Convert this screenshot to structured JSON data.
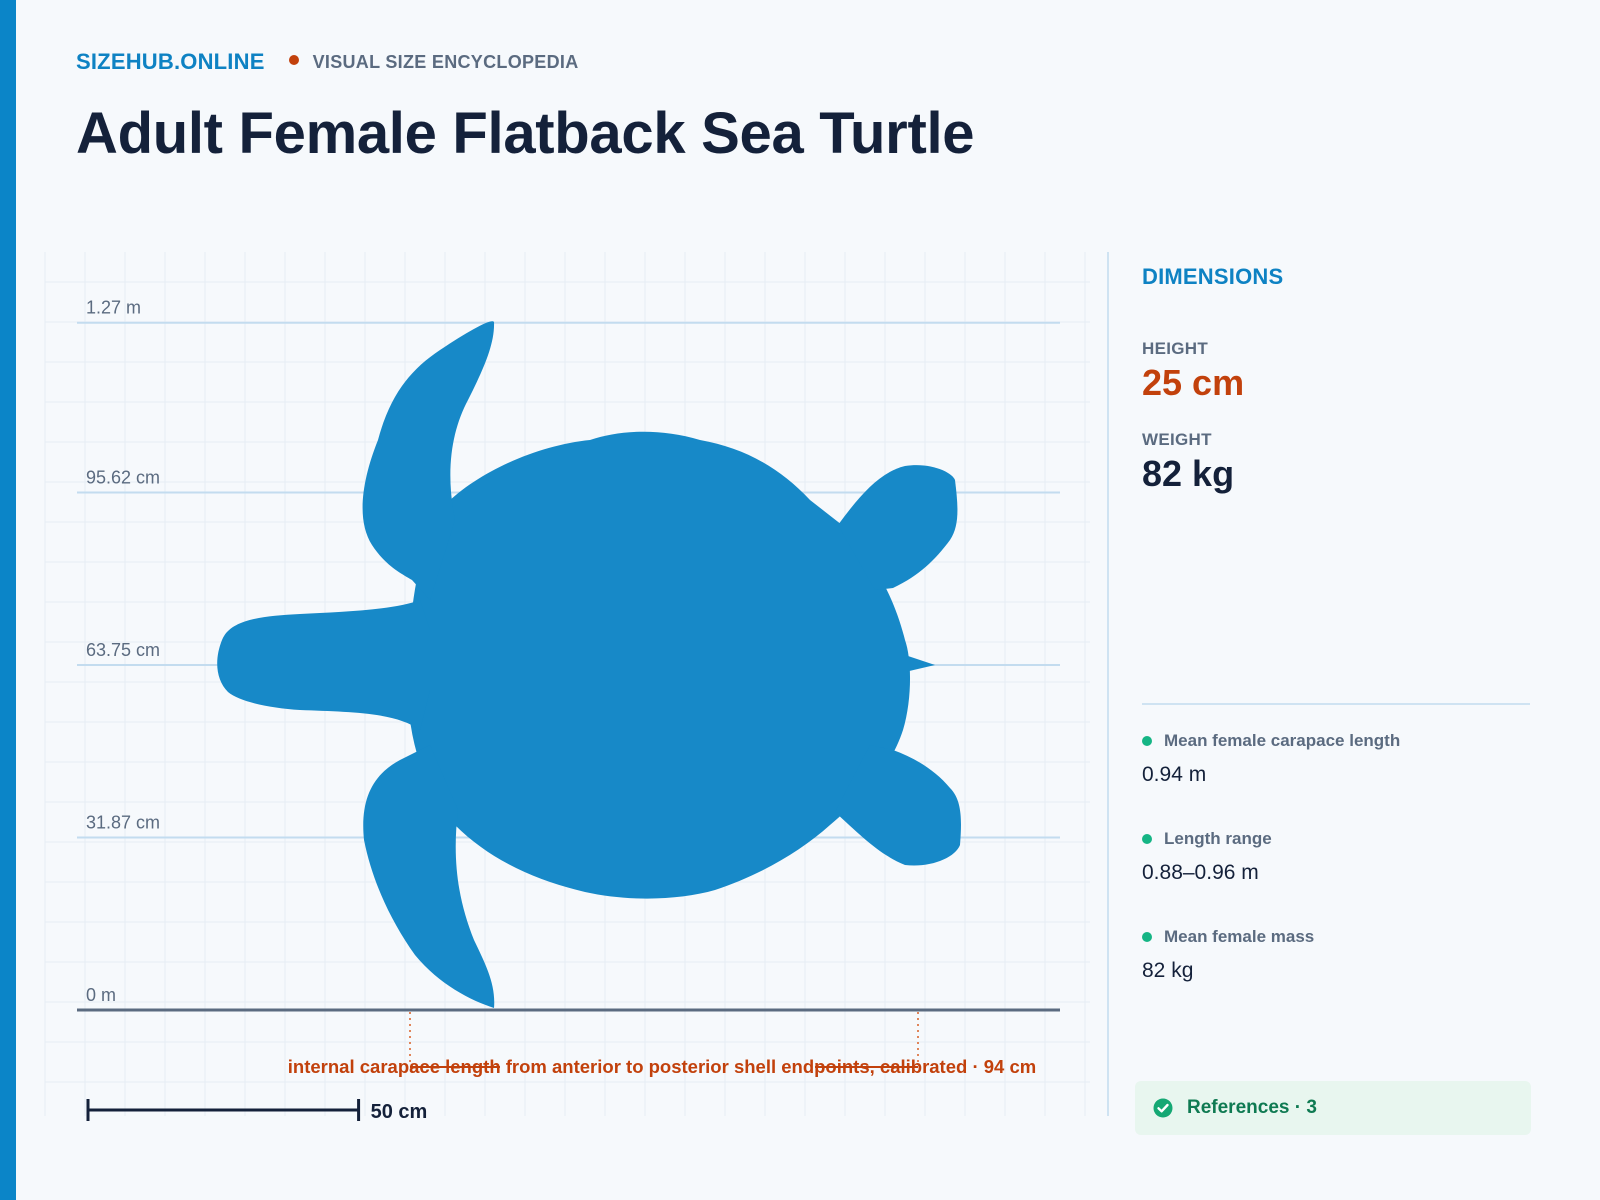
{
  "site": {
    "name": "SIZEHUB.ONLINE",
    "tagline": "VISUAL SIZE ENCYCLOPEDIA"
  },
  "page": {
    "title": "Adult Female Flatback Sea Turtle"
  },
  "colors": {
    "accent": "#0b85c8",
    "silhouette": "#1789c8",
    "highlight": "#c2410c",
    "fact_bullet": "#15b585",
    "reference_bg": "#e8f6ef",
    "reference_text": "#0f7a52"
  },
  "scale": {
    "unit": "m",
    "max_value": 1.275,
    "gridlines": [
      {
        "label": "0 m",
        "value": 0
      },
      {
        "label": "31.87 cm",
        "value": 0.3187
      },
      {
        "label": "63.75 cm",
        "value": 0.6375
      },
      {
        "label": "95.62 cm",
        "value": 0.9562
      },
      {
        "label": "1.27 m",
        "value": 1.27
      }
    ],
    "scale_bar": {
      "label": "50 cm",
      "value": 0.5
    }
  },
  "figure": {
    "silhouette_icon": "sea-turtle-silhouette",
    "measurement_annotation": "internal carapace length from anterior to posterior shell endpoints, calibrated · 94 cm",
    "measurement_value": 0.94
  },
  "panel": {
    "title": "DIMENSIONS",
    "height_label": "HEIGHT",
    "height_value": "25 cm",
    "weight_label": "WEIGHT",
    "weight_value": "82 kg",
    "facts": [
      {
        "label": "Mean female carapace length",
        "value": "0.94 m"
      },
      {
        "label": "Length range",
        "value": "0.88–0.96 m"
      },
      {
        "label": "Mean female mass",
        "value": "82 kg"
      }
    ],
    "references_label": "References · 3",
    "references_icon": "check-circle-icon"
  }
}
